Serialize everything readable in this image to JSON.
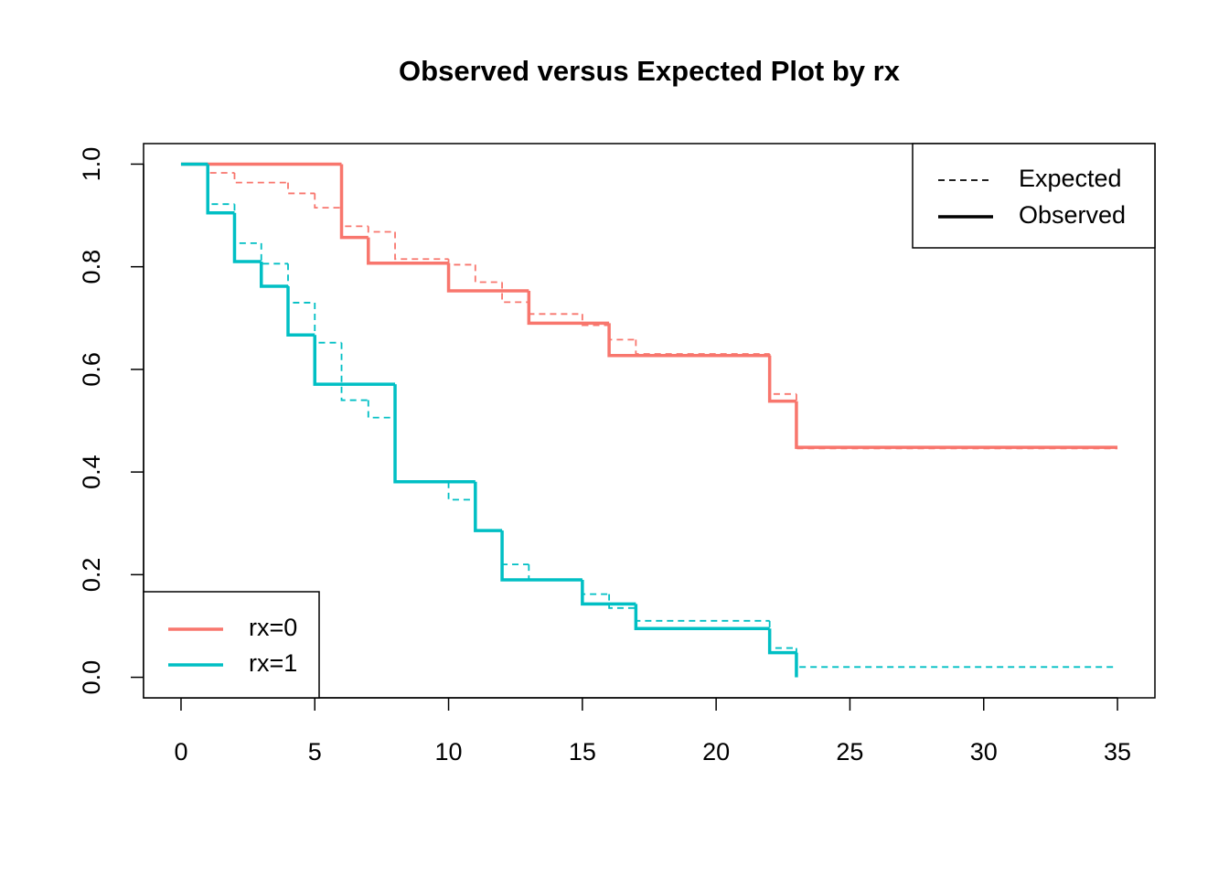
{
  "chart_data": {
    "type": "step",
    "title": "Observed versus Expected Plot by rx",
    "xlim": [
      -1.4,
      36.4
    ],
    "ylim": [
      -0.04,
      1.04
    ],
    "xticks": [
      0,
      5,
      10,
      15,
      20,
      25,
      30,
      35
    ],
    "yticks": [
      {
        "value": 0,
        "label": "0.0"
      },
      {
        "value": 0.2,
        "label": "0.2"
      },
      {
        "value": 0.4,
        "label": "0.4"
      },
      {
        "value": 0.6,
        "label": "0.6"
      },
      {
        "value": 0.8,
        "label": "0.8"
      },
      {
        "value": 1,
        "label": "1.0"
      }
    ],
    "grid": false,
    "line_styles": [
      {
        "name": "Expected",
        "dashed": true
      },
      {
        "name": "Observed",
        "dashed": false
      }
    ],
    "line_style_legend": "top-right",
    "legend": "bottom-left",
    "series": [
      {
        "name": "rx=0",
        "color": "#f8766d",
        "observed": {
          "x": [
            0,
            6,
            7,
            10,
            13,
            16,
            22,
            23,
            35
          ],
          "values": [
            1,
            0.857,
            0.807,
            0.753,
            0.69,
            0.627,
            0.538,
            0.448,
            0.448
          ]
        },
        "expected": {
          "x": [
            0,
            1,
            2,
            4,
            5,
            6,
            7,
            8,
            10,
            11,
            12,
            13,
            15,
            16,
            17,
            22,
            23,
            35
          ],
          "values": [
            1,
            0.983,
            0.964,
            0.943,
            0.915,
            0.879,
            0.868,
            0.815,
            0.804,
            0.77,
            0.731,
            0.708,
            0.686,
            0.658,
            0.63,
            0.552,
            0.446,
            0.446
          ]
        }
      },
      {
        "name": "rx=1",
        "color": "#00bfc4",
        "observed": {
          "x": [
            0,
            1,
            2,
            3,
            4,
            5,
            8,
            11,
            12,
            15,
            17,
            22,
            23
          ],
          "values": [
            1,
            0.905,
            0.81,
            0.762,
            0.667,
            0.571,
            0.381,
            0.286,
            0.19,
            0.143,
            0.095,
            0.048,
            0
          ]
        },
        "expected": {
          "x": [
            0,
            1,
            2,
            3,
            4,
            5,
            6,
            7,
            8,
            10,
            11,
            12,
            13,
            15,
            16,
            17,
            22,
            23,
            35
          ],
          "values": [
            1,
            0.922,
            0.846,
            0.806,
            0.73,
            0.652,
            0.54,
            0.506,
            0.381,
            0.346,
            0.286,
            0.22,
            0.19,
            0.162,
            0.135,
            0.11,
            0.057,
            0.02,
            0.02
          ]
        }
      }
    ]
  }
}
